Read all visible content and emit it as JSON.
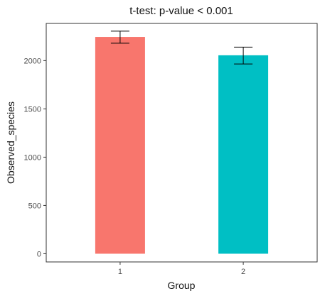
{
  "chart_data": {
    "type": "bar",
    "title": "t-test: p-value < 0.001",
    "xlabel": "Group",
    "ylabel": "Observed_species",
    "categories": [
      "1",
      "2"
    ],
    "values": [
      2245,
      2055
    ],
    "error_bars": [
      {
        "low": 2180,
        "high": 2305
      },
      {
        "low": 1965,
        "high": 2140
      }
    ],
    "colors": [
      "#F8766D",
      "#00BFC4"
    ],
    "ylim": [
      -85,
      2385
    ],
    "yticks": [
      0,
      500,
      1000,
      1500,
      2000
    ],
    "ytick_labels": [
      "0",
      "500",
      "1000",
      "1500",
      "2000"
    ],
    "grid": false,
    "legend": "none"
  }
}
